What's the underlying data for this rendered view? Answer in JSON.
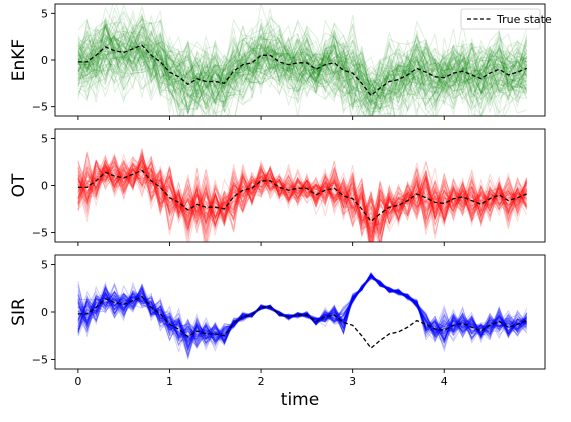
{
  "chart_data": [
    {
      "type": "line",
      "ylabel": "EnKF",
      "ylim": [
        -6,
        6
      ],
      "yticks": [
        -5,
        0,
        5
      ],
      "ensemble_color": "#008000",
      "legend": {
        "label": "True state",
        "placement": "top-right"
      },
      "ensemble_spread": [
        2.5,
        2.8,
        2.6,
        3.0,
        2.7,
        2.9,
        2.6,
        2.8,
        3.5,
        3.0,
        2.8,
        2.5,
        3.8,
        2.7,
        2.6,
        3.2,
        2.4,
        2.9,
        2.7,
        2.6,
        3.0,
        2.5,
        2.8,
        2.6,
        3.2,
        2.7,
        2.5,
        2.9,
        3.0,
        2.6,
        3.4,
        2.8,
        2.7,
        2.6,
        3.0,
        2.8,
        2.5,
        2.9,
        2.7,
        3.2,
        2.6,
        2.8,
        2.7,
        2.9,
        2.6,
        2.8,
        3.0,
        2.6,
        2.7,
        2.8
      ]
    },
    {
      "type": "line",
      "ylabel": "OT",
      "ylim": [
        -6,
        6
      ],
      "yticks": [
        -5,
        0,
        5
      ],
      "ensemble_color": "#ff0000",
      "ensemble_spread": [
        2.0,
        2.2,
        1.8,
        1.2,
        1.6,
        1.4,
        1.2,
        1.8,
        1.6,
        2.0,
        2.6,
        1.5,
        2.2,
        2.5,
        2.8,
        2.0,
        1.5,
        2.2,
        1.8,
        1.2,
        1.4,
        1.2,
        1.0,
        1.4,
        1.2,
        1.0,
        1.2,
        1.5,
        1.8,
        1.6,
        2.0,
        2.4,
        2.8,
        2.6,
        1.6,
        1.5,
        1.4,
        2.2,
        2.6,
        2.0,
        1.8,
        1.6,
        1.4,
        1.8,
        1.6,
        1.4,
        1.6,
        1.8,
        1.4,
        1.2
      ]
    },
    {
      "type": "line",
      "ylabel": "SIR",
      "xlabel": "time",
      "ylim": [
        -6,
        6
      ],
      "yticks": [
        -5,
        0,
        5
      ],
      "xticks": [
        0,
        1,
        2,
        3,
        4
      ],
      "ensemble_color": "#0000ff",
      "ensemble_spread": [
        2.0,
        1.5,
        1.2,
        1.0,
        1.2,
        1.0,
        0.9,
        0.8,
        0.9,
        1.0,
        1.0,
        1.2,
        1.5,
        1.3,
        1.0,
        0.9,
        0.8,
        0.3,
        0.3,
        0.2,
        0.2,
        0.2,
        0.2,
        0.2,
        0.2,
        0.2,
        0.3,
        0.5,
        0.8,
        1.0,
        0.3,
        0.2,
        0.2,
        0.2,
        0.2,
        0.2,
        0.2,
        0.3,
        0.8,
        1.0,
        1.2,
        1.0,
        1.0,
        1.0,
        0.8,
        0.9,
        1.0,
        1.0,
        0.9,
        0.8
      ]
    }
  ],
  "true_state": {
    "t": [
      0.0,
      0.1,
      0.2,
      0.3,
      0.4,
      0.5,
      0.6,
      0.7,
      0.8,
      0.9,
      1.0,
      1.1,
      1.2,
      1.3,
      1.4,
      1.5,
      1.6,
      1.7,
      1.8,
      1.9,
      2.0,
      2.1,
      2.2,
      2.3,
      2.4,
      2.5,
      2.6,
      2.7,
      2.8,
      2.9,
      3.0,
      3.1,
      3.2,
      3.3,
      3.4,
      3.5,
      3.6,
      3.7,
      3.8,
      3.9,
      4.0,
      4.1,
      4.2,
      4.3,
      4.4,
      4.5,
      4.6,
      4.7,
      4.8,
      4.9
    ],
    "true": [
      -0.2,
      -0.2,
      0.5,
      1.4,
      1.0,
      0.8,
      1.2,
      1.6,
      0.5,
      -0.2,
      -1.3,
      -1.8,
      -2.6,
      -2.0,
      -2.3,
      -2.3,
      -2.5,
      -1.2,
      -0.5,
      -0.3,
      0.5,
      0.5,
      -0.2,
      -0.5,
      -0.3,
      -0.3,
      -1.0,
      -0.5,
      -0.3,
      -1.1,
      -1.4,
      -2.5,
      -3.8,
      -3.0,
      -2.3,
      -2.1,
      -1.6,
      -0.9,
      -1.3,
      -1.8,
      -1.9,
      -1.4,
      -1.2,
      -1.6,
      -2.0,
      -1.4,
      -1.0,
      -1.6,
      -1.3,
      -0.9
    ],
    "mode": [
      -0.2,
      -0.2,
      0.5,
      1.4,
      1.0,
      0.8,
      1.2,
      1.6,
      0.5,
      -0.2,
      -1.3,
      -1.8,
      -2.6,
      -2.0,
      -2.3,
      -2.3,
      -2.5,
      -1.2,
      -0.5,
      -0.3,
      0.5,
      0.5,
      -0.2,
      -0.5,
      -0.3,
      -0.3,
      -1.0,
      -0.5,
      -0.3,
      -1.1,
      1.4,
      2.5,
      3.8,
      3.0,
      2.3,
      2.1,
      1.6,
      0.9,
      -1.3,
      -1.8,
      -1.9,
      -1.4,
      -1.2,
      -1.6,
      -2.0,
      -1.4,
      -1.0,
      -1.6,
      -1.3,
      -0.9
    ]
  }
}
